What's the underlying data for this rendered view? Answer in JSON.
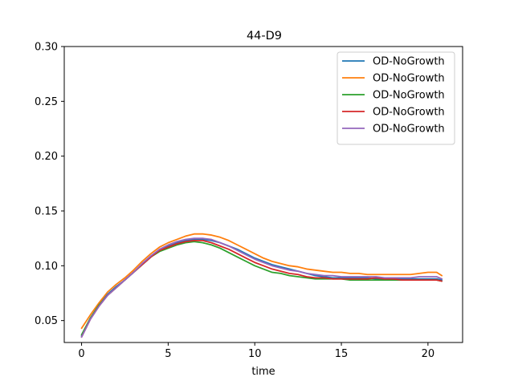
{
  "chart_data": {
    "type": "line",
    "title": "44-D9",
    "xlabel": "time",
    "ylabel": "",
    "xlim": [
      -1,
      22
    ],
    "ylim": [
      0.03,
      0.3
    ],
    "xticks": [
      0,
      5,
      10,
      15,
      20
    ],
    "yticks": [
      0.05,
      0.1,
      0.15,
      0.2,
      0.25,
      0.3
    ],
    "xtick_labels": [
      "0",
      "5",
      "10",
      "15",
      "20"
    ],
    "ytick_labels": [
      "0.05",
      "0.10",
      "0.15",
      "0.20",
      "0.25",
      "0.30"
    ],
    "grid": false,
    "legend_position": "top-right",
    "x": [
      0,
      0.5,
      1,
      1.5,
      2,
      2.5,
      3,
      3.5,
      4,
      4.5,
      5,
      5.5,
      6,
      6.5,
      7,
      7.5,
      8,
      8.5,
      9,
      9.5,
      10,
      10.5,
      11,
      11.5,
      12,
      12.5,
      13,
      13.5,
      14,
      14.5,
      15,
      15.5,
      16,
      16.5,
      17,
      17.5,
      18,
      18.5,
      19,
      19.5,
      20,
      20.5,
      20.8
    ],
    "series": [
      {
        "name": "OD-NoGrowth",
        "color": "#1f77b4",
        "values": [
          0.036,
          0.052,
          0.064,
          0.074,
          0.081,
          0.087,
          0.094,
          0.101,
          0.108,
          0.114,
          0.118,
          0.121,
          0.123,
          0.124,
          0.124,
          0.123,
          0.121,
          0.118,
          0.115,
          0.111,
          0.107,
          0.104,
          0.101,
          0.099,
          0.097,
          0.095,
          0.093,
          0.091,
          0.09,
          0.089,
          0.089,
          0.089,
          0.089,
          0.089,
          0.088,
          0.088,
          0.088,
          0.088,
          0.088,
          0.088,
          0.088,
          0.088,
          0.087
        ]
      },
      {
        "name": "OD-NoGrowth",
        "color": "#ff7f0e",
        "values": [
          0.043,
          0.055,
          0.066,
          0.076,
          0.083,
          0.089,
          0.096,
          0.104,
          0.111,
          0.117,
          0.121,
          0.124,
          0.127,
          0.129,
          0.129,
          0.128,
          0.126,
          0.123,
          0.119,
          0.115,
          0.111,
          0.107,
          0.104,
          0.102,
          0.1,
          0.099,
          0.097,
          0.096,
          0.095,
          0.094,
          0.094,
          0.093,
          0.093,
          0.092,
          0.092,
          0.092,
          0.092,
          0.092,
          0.092,
          0.093,
          0.094,
          0.094,
          0.091
        ]
      },
      {
        "name": "OD-NoGrowth",
        "color": "#2ca02c",
        "values": [
          0.037,
          0.052,
          0.064,
          0.073,
          0.08,
          0.087,
          0.094,
          0.101,
          0.108,
          0.113,
          0.116,
          0.119,
          0.121,
          0.122,
          0.121,
          0.119,
          0.116,
          0.112,
          0.108,
          0.104,
          0.1,
          0.097,
          0.094,
          0.093,
          0.091,
          0.09,
          0.089,
          0.088,
          0.088,
          0.088,
          0.088,
          0.087,
          0.087,
          0.087,
          0.087,
          0.087,
          0.087,
          0.087,
          0.087,
          0.087,
          0.087,
          0.087,
          0.086
        ]
      },
      {
        "name": "OD-NoGrowth",
        "color": "#d62728",
        "values": [
          0.035,
          0.051,
          0.063,
          0.073,
          0.08,
          0.087,
          0.094,
          0.101,
          0.108,
          0.114,
          0.117,
          0.12,
          0.122,
          0.123,
          0.123,
          0.121,
          0.118,
          0.115,
          0.111,
          0.107,
          0.103,
          0.1,
          0.097,
          0.095,
          0.093,
          0.092,
          0.09,
          0.089,
          0.089,
          0.088,
          0.088,
          0.088,
          0.088,
          0.088,
          0.089,
          0.088,
          0.088,
          0.087,
          0.087,
          0.087,
          0.087,
          0.087,
          0.086
        ]
      },
      {
        "name": "OD-NoGrowth",
        "color": "#9467bd",
        "values": [
          0.035,
          0.051,
          0.063,
          0.073,
          0.08,
          0.087,
          0.094,
          0.102,
          0.109,
          0.115,
          0.119,
          0.122,
          0.124,
          0.125,
          0.125,
          0.124,
          0.121,
          0.118,
          0.114,
          0.11,
          0.106,
          0.103,
          0.1,
          0.098,
          0.096,
          0.095,
          0.093,
          0.092,
          0.091,
          0.091,
          0.09,
          0.09,
          0.09,
          0.09,
          0.09,
          0.089,
          0.089,
          0.089,
          0.089,
          0.09,
          0.09,
          0.09,
          0.088
        ]
      }
    ]
  }
}
